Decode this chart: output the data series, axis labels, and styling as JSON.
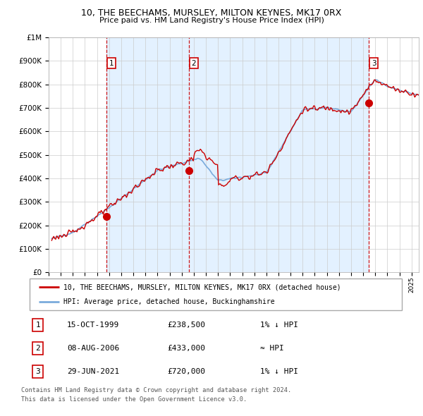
{
  "title": "10, THE BEECHAMS, MURSLEY, MILTON KEYNES, MK17 0RX",
  "subtitle": "Price paid vs. HM Land Registry's House Price Index (HPI)",
  "legend_line1": "10, THE BEECHAMS, MURSLEY, MILTON KEYNES, MK17 0RX (detached house)",
  "legend_line2": "HPI: Average price, detached house, Buckinghamshire",
  "transactions": [
    {
      "label": "1",
      "date": "15-OCT-1999",
      "price": 238500,
      "x": 1999.79,
      "vs_hpi": "1% ↓ HPI"
    },
    {
      "label": "2",
      "date": "08-AUG-2006",
      "price": 433000,
      "x": 2006.6,
      "vs_hpi": "≈ HPI"
    },
    {
      "label": "3",
      "date": "29-JUN-2021",
      "price": 720000,
      "x": 2021.49,
      "vs_hpi": "1% ↓ HPI"
    }
  ],
  "hpi_color": "#7aabdc",
  "price_color": "#cc0000",
  "dot_color": "#cc0000",
  "vline_color": "#cc0000",
  "bg_shade_color": "#ddeeff",
  "grid_color": "#cccccc",
  "ylim": [
    0,
    1000000
  ],
  "xlim_start": 1995.25,
  "xlim_end": 2025.6,
  "footer_line1": "Contains HM Land Registry data © Crown copyright and database right 2024.",
  "footer_line2": "This data is licensed under the Open Government Licence v3.0."
}
